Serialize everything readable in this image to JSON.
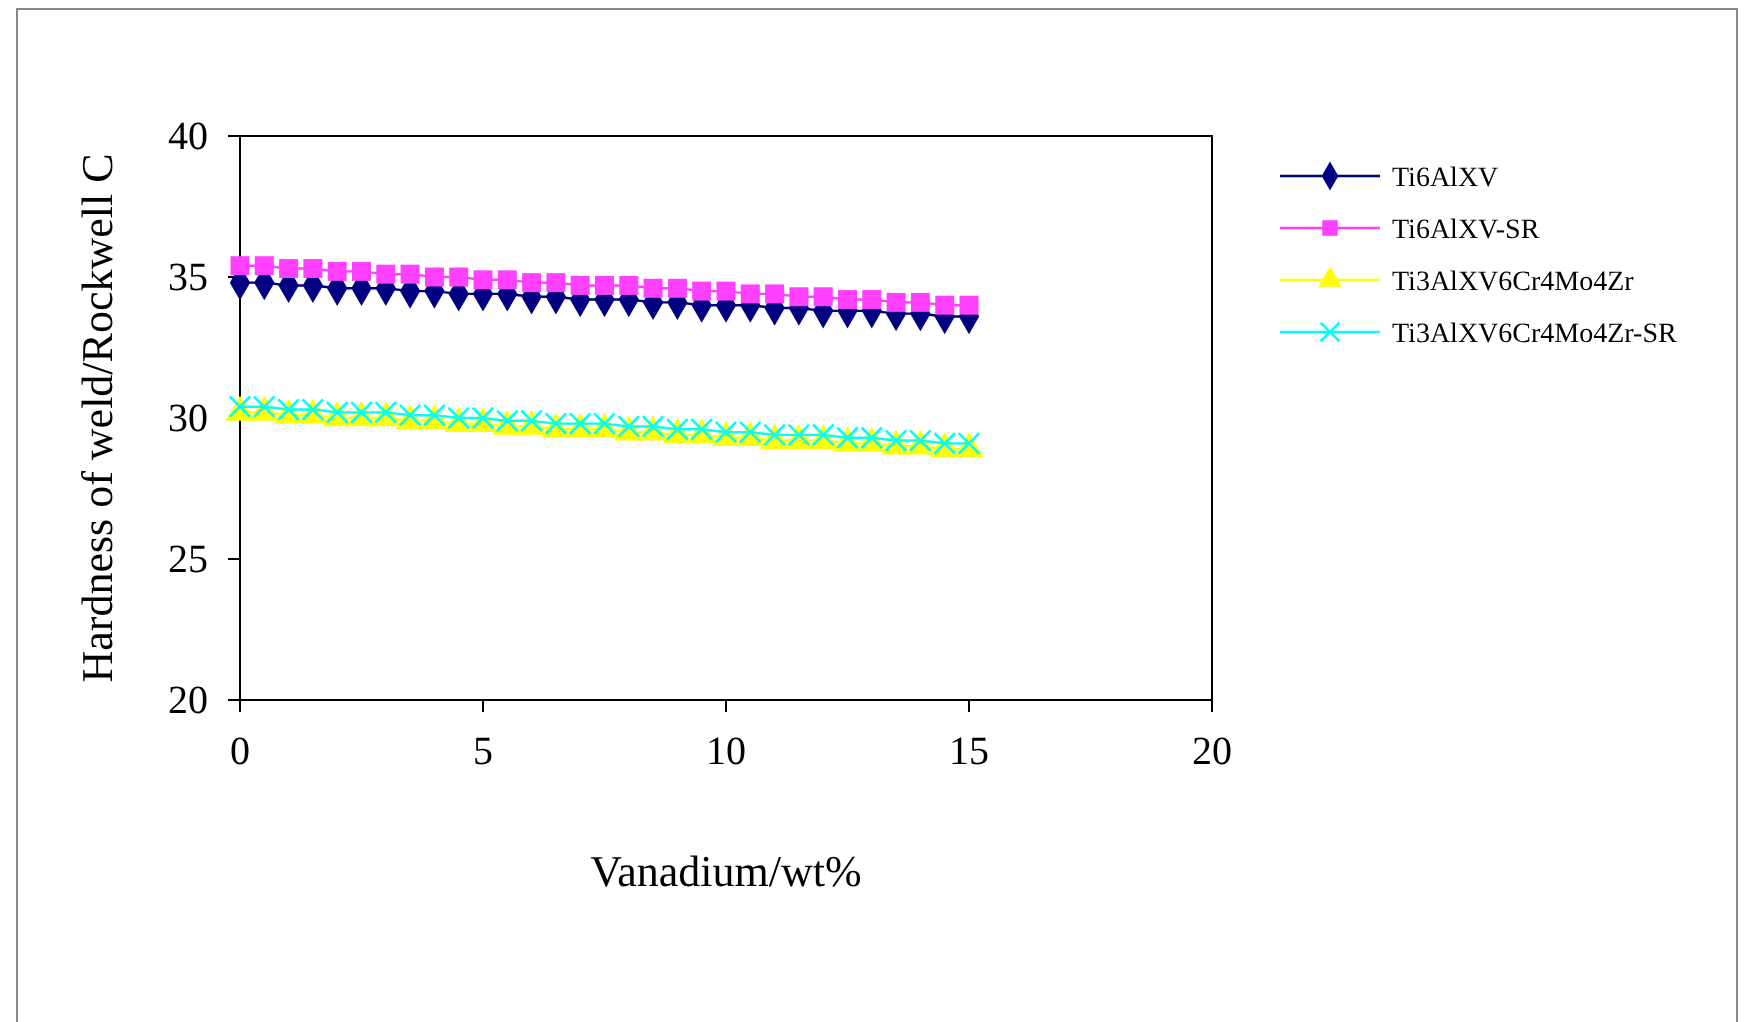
{
  "chart_data": {
    "type": "line",
    "xlabel": "Vanadium/wt%",
    "ylabel": "Hardness of weld/Rockwell C",
    "x": [
      0,
      0.5,
      1,
      1.5,
      2,
      2.5,
      3,
      3.5,
      4,
      4.5,
      5,
      5.5,
      6,
      6.5,
      7,
      7.5,
      8,
      8.5,
      9,
      9.5,
      10,
      10.5,
      11,
      11.5,
      12,
      12.5,
      13,
      13.5,
      14,
      14.5,
      15
    ],
    "series": [
      {
        "name": "Ti6AlXV",
        "color": "#000080",
        "marker": "diamond",
        "values": [
          34.8,
          34.8,
          34.7,
          34.7,
          34.6,
          34.6,
          34.6,
          34.5,
          34.5,
          34.4,
          34.4,
          34.4,
          34.3,
          34.3,
          34.2,
          34.2,
          34.2,
          34.1,
          34.1,
          34.0,
          34.0,
          34.0,
          33.9,
          33.9,
          33.8,
          33.8,
          33.8,
          33.7,
          33.7,
          33.6,
          33.6
        ]
      },
      {
        "name": "Ti6AlXV-SR",
        "color": "#ff40ff",
        "marker": "square",
        "values": [
          35.4,
          35.4,
          35.3,
          35.3,
          35.2,
          35.2,
          35.1,
          35.1,
          35.0,
          35.0,
          34.9,
          34.9,
          34.8,
          34.8,
          34.7,
          34.7,
          34.7,
          34.6,
          34.6,
          34.5,
          34.5,
          34.4,
          34.4,
          34.3,
          34.3,
          34.2,
          34.2,
          34.1,
          34.1,
          34.0,
          34.0
        ]
      },
      {
        "name": "Ti3AlXV6Cr4Mo4Zr",
        "color": "#ffff00",
        "marker": "triangle",
        "values": [
          30.2,
          30.2,
          30.1,
          30.1,
          30.0,
          30.0,
          30.0,
          29.9,
          29.9,
          29.8,
          29.8,
          29.7,
          29.7,
          29.6,
          29.6,
          29.6,
          29.5,
          29.5,
          29.4,
          29.4,
          29.3,
          29.3,
          29.2,
          29.2,
          29.2,
          29.1,
          29.1,
          29.0,
          29.0,
          28.9,
          28.9
        ]
      },
      {
        "name": "Ti3AlXV6Cr4Mo4Zr-SR",
        "color": "#00ffff",
        "marker": "cross",
        "values": [
          30.4,
          30.4,
          30.3,
          30.3,
          30.2,
          30.2,
          30.2,
          30.1,
          30.1,
          30.0,
          30.0,
          29.9,
          29.9,
          29.8,
          29.8,
          29.8,
          29.7,
          29.7,
          29.6,
          29.6,
          29.5,
          29.5,
          29.4,
          29.4,
          29.4,
          29.3,
          29.3,
          29.2,
          29.2,
          29.1,
          29.1
        ]
      }
    ],
    "xlim": [
      0,
      20
    ],
    "xticks": [
      0,
      5,
      10,
      15,
      20
    ],
    "ylim": [
      20,
      40
    ],
    "yticks": [
      20,
      25,
      30,
      35,
      40
    ],
    "grid": false,
    "legend": "right",
    "line_style": "solid"
  }
}
